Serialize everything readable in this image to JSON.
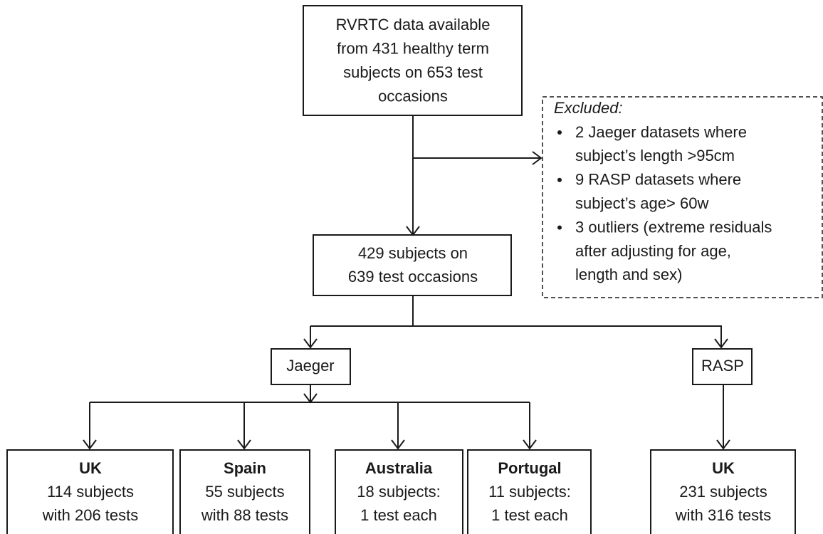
{
  "nodes": {
    "source": {
      "lines": [
        "RVRTC data available",
        "from 431 healthy term",
        "subjects on 653 test",
        "occasions"
      ]
    },
    "included": {
      "lines": [
        "429 subjects on",
        "639 test occasions"
      ]
    },
    "jaeger": {
      "label": "Jaeger"
    },
    "rasp": {
      "label": "RASP"
    },
    "jaeger_uk": {
      "title": "UK",
      "lines": [
        "114 subjects",
        "with 206 tests"
      ]
    },
    "jaeger_spain": {
      "title": "Spain",
      "lines": [
        "55 subjects",
        "with 88 tests"
      ]
    },
    "jaeger_australia": {
      "title": "Australia",
      "lines": [
        "18 subjects:",
        "1 test each"
      ]
    },
    "jaeger_portugal": {
      "title": "Portugal",
      "lines": [
        "11 subjects:",
        "1 test each"
      ]
    },
    "rasp_uk": {
      "title": "UK",
      "lines": [
        "231 subjects",
        "with 316 tests"
      ]
    }
  },
  "excluded": {
    "heading": "Excluded:",
    "items": [
      [
        "2 Jaeger datasets where",
        "subject’s length >95cm"
      ],
      [
        "9 RASP datasets where",
        "subject’s age> 60w"
      ],
      [
        "3 outliers (extreme residuals",
        "after adjusting for age,",
        "length and sex)"
      ]
    ]
  }
}
